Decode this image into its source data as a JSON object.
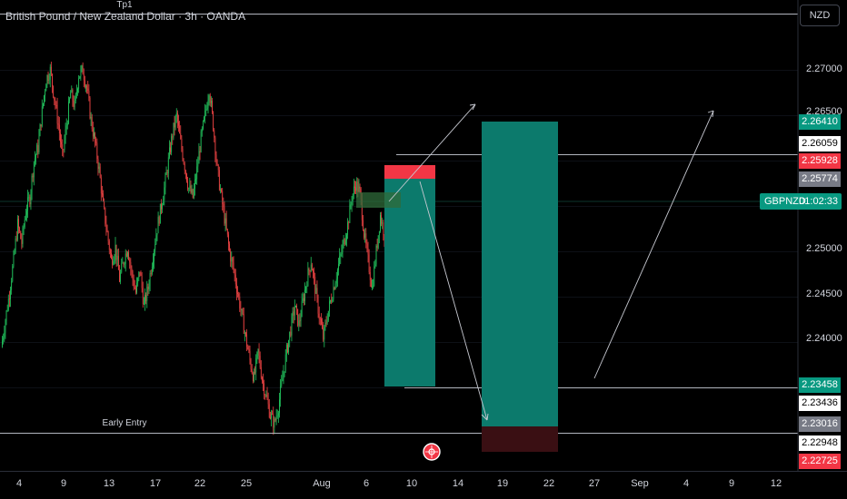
{
  "header": {
    "title": "British Pound / New Zealand Dollar · 3h · OANDA",
    "currency_button": "NZD"
  },
  "colors": {
    "up": "#22c55e",
    "down": "#ef4444",
    "teal": "#089981",
    "red": "#f23645",
    "bg": "#000000"
  },
  "annotations": {
    "tp_label": "Tp1",
    "entry_label": "Early Entry",
    "logo_icon": "tradingview-badge-icon"
  },
  "price_badges": [
    {
      "value": "2.26410",
      "kind": "teal"
    },
    {
      "value": "2.26059",
      "kind": "white"
    },
    {
      "value": "2.25928",
      "kind": "red"
    },
    {
      "value": "2.25774",
      "kind": "gray"
    },
    {
      "value": "2.23458",
      "kind": "teal"
    },
    {
      "value": "2.23436",
      "kind": "white"
    },
    {
      "value": "2.23016",
      "kind": "gray"
    },
    {
      "value": "2.22948",
      "kind": "white"
    },
    {
      "value": "2.22725",
      "kind": "red"
    }
  ],
  "current_price_label": {
    "symbol": "GBPNZD",
    "countdown": "01:02:33"
  },
  "chart_data": {
    "type": "candlestick",
    "title": "British Pound / New Zealand Dollar · 3h · OANDA",
    "y_axis": {
      "ticks": [
        "2.27000",
        "2.26500",
        "2.25000",
        "2.24500",
        "2.24000"
      ],
      "range": [
        2.2265,
        2.2735
      ]
    },
    "x_axis": {
      "ticks": [
        "4",
        "9",
        "13",
        "17",
        "22",
        "25",
        "Aug",
        "6",
        "10",
        "14",
        "19",
        "22",
        "27",
        "Sep",
        "4",
        "9",
        "12"
      ]
    },
    "series": [
      {
        "name": "GBPNZD",
        "close_path": [
          2.2395,
          2.2425,
          2.2455,
          2.249,
          2.253,
          2.251,
          2.2545,
          2.256,
          2.26,
          2.2615,
          2.2655,
          2.269,
          2.27,
          2.267,
          2.264,
          2.2605,
          2.264,
          2.2675,
          2.266,
          2.2695,
          2.27,
          2.268,
          2.2645,
          2.262,
          2.259,
          2.255,
          2.252,
          2.249,
          2.2505,
          2.247,
          2.249,
          2.2505,
          2.2475,
          2.2455,
          2.248,
          2.244,
          2.246,
          2.249,
          2.252,
          2.2545,
          2.257,
          2.26,
          2.263,
          2.265,
          2.262,
          2.2595,
          2.257,
          2.256,
          2.259,
          2.2625,
          2.265,
          2.268,
          2.264,
          2.259,
          2.256,
          2.253,
          2.25,
          2.248,
          2.2455,
          2.243,
          2.2405,
          2.238,
          2.236,
          2.239,
          2.236,
          2.234,
          2.232,
          2.231,
          2.233,
          2.236,
          2.239,
          2.2415,
          2.244,
          2.242,
          2.2445,
          2.247,
          2.249,
          2.246,
          2.243,
          2.2405,
          2.243,
          2.245,
          2.247,
          2.249,
          2.251,
          2.253,
          2.256,
          2.2575,
          2.2565,
          2.252,
          2.249,
          2.246,
          2.25,
          2.254,
          2.252,
          2.2475
        ]
      }
    ],
    "drawings": [
      {
        "type": "short_position",
        "entry": 2.25774,
        "stop": 2.25928,
        "target": 2.23458
      },
      {
        "type": "long_position_projection",
        "entry": 2.23016,
        "stop": 2.22725,
        "target": 2.2641
      },
      {
        "type": "horizontal_line",
        "price": 2.26059
      },
      {
        "type": "horizontal_line",
        "price": 2.23436
      },
      {
        "type": "horizontal_line",
        "price": 2.22948,
        "label": "Early Entry"
      },
      {
        "type": "horizontal_line",
        "price": 2.2735,
        "label": "Tp1"
      }
    ]
  }
}
